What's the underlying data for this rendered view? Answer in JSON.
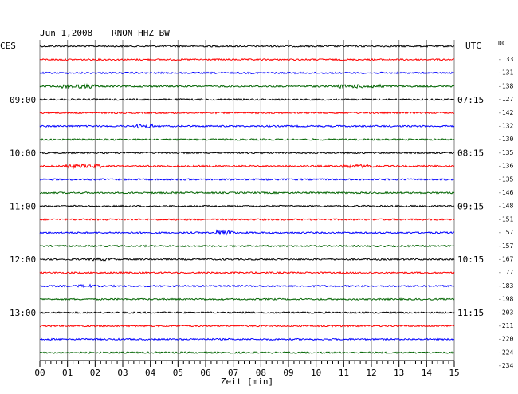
{
  "header": {
    "date": "Jun 1,2008",
    "station": "RNON HHZ BW",
    "left_tz": "CES",
    "right_tz": "UTC",
    "dc_label": "DC"
  },
  "colors": {
    "cycle": [
      "#000000",
      "#ff0000",
      "#0000ff",
      "#006400"
    ],
    "grid": "#808080"
  },
  "chart_data": {
    "type": "line",
    "title": "Jun 1,2008   RNON HHZ BW",
    "xlabel": "Zeit [min]",
    "xlim": [
      0,
      15
    ],
    "x_ticks": [
      "00",
      "01",
      "02",
      "03",
      "04",
      "05",
      "06",
      "07",
      "08",
      "09",
      "10",
      "11",
      "12",
      "13",
      "14",
      "15"
    ],
    "trace_count": 24,
    "minutes_per_trace": 15,
    "grid": true,
    "left_time_labels": [
      {
        "trace": 4,
        "text": "09:00"
      },
      {
        "trace": 8,
        "text": "10:00"
      },
      {
        "trace": 12,
        "text": "11:00"
      },
      {
        "trace": 16,
        "text": "12:00"
      },
      {
        "trace": 20,
        "text": "13:00"
      }
    ],
    "right_time_labels": [
      {
        "trace": 4,
        "text": "07:15"
      },
      {
        "trace": 8,
        "text": "08:15"
      },
      {
        "trace": 12,
        "text": "09:15"
      },
      {
        "trace": 16,
        "text": "10:15"
      },
      {
        "trace": 20,
        "text": "11:15"
      }
    ],
    "dc_offsets": [
      "-133",
      "-131",
      "-138",
      "-127",
      "-142",
      "-132",
      "-130",
      "-135",
      "-136",
      "-135",
      "-146",
      "-148",
      "-151",
      "-157",
      "-157",
      "-167",
      "-177",
      "-183",
      "-198",
      "-203",
      "-211",
      "-220",
      "-224",
      "-234"
    ],
    "bursts": [
      {
        "trace": 3,
        "start_min": 0.8,
        "end_min": 2.0,
        "amp": 2.5
      },
      {
        "trace": 3,
        "start_min": 10.8,
        "end_min": 12.5,
        "amp": 2.2
      },
      {
        "trace": 6,
        "start_min": 3.5,
        "end_min": 4.1,
        "amp": 2.5
      },
      {
        "trace": 9,
        "start_min": 0.8,
        "end_min": 2.2,
        "amp": 2.5
      },
      {
        "trace": 9,
        "start_min": 10.9,
        "end_min": 12.2,
        "amp": 2.2
      },
      {
        "trace": 14,
        "start_min": 6.3,
        "end_min": 7.0,
        "amp": 3.2
      },
      {
        "trace": 16,
        "start_min": 1.8,
        "end_min": 2.7,
        "amp": 1.8
      },
      {
        "trace": 18,
        "start_min": 1.3,
        "end_min": 2.0,
        "amp": 1.8
      }
    ]
  }
}
